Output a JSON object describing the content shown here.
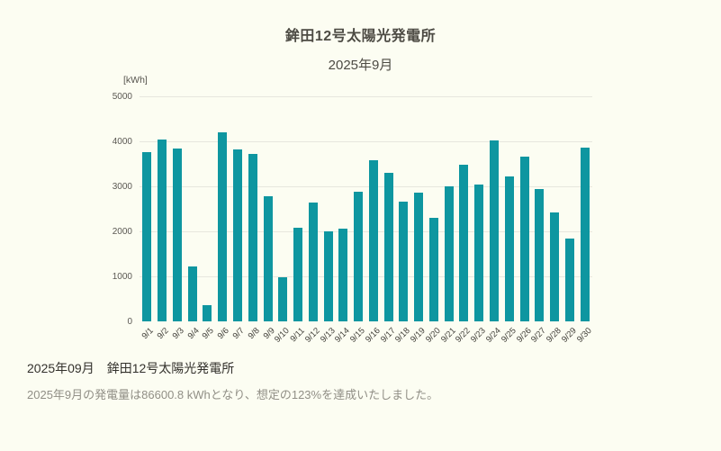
{
  "chart": {
    "title": "鉾田12号太陽光発電所",
    "subtitle": "2025年9月",
    "unit_label": "[kWh]"
  },
  "chart_data": {
    "type": "bar",
    "title": "鉾田12号太陽光発電所",
    "subtitle": "2025年9月",
    "xlabel": "",
    "ylabel": "[kWh]",
    "ylim": [
      0,
      5000
    ],
    "ytick_interval": 1000,
    "grid": true,
    "legend_position": "none",
    "bar_color": "#0e96a0",
    "categories": [
      "9/1",
      "9/2",
      "9/3",
      "9/4",
      "9/5",
      "9/6",
      "9/7",
      "9/8",
      "9/9",
      "9/10",
      "9/11",
      "9/12",
      "9/13",
      "9/14",
      "9/15",
      "9/16",
      "9/17",
      "9/18",
      "9/19",
      "9/20",
      "9/21",
      "9/22",
      "9/23",
      "9/24",
      "9/25",
      "9/26",
      "9/27",
      "9/28",
      "9/29",
      "9/30"
    ],
    "values": [
      3760,
      4050,
      3840,
      1220,
      360,
      4200,
      3830,
      3730,
      2780,
      980,
      2080,
      2650,
      2010,
      2060,
      2890,
      3590,
      3300,
      2660,
      2870,
      2310,
      3000,
      3480,
      3050,
      4030,
      3230,
      3670,
      2950,
      2430,
      1850,
      3870
    ]
  },
  "footer": {
    "heading": "2025年09月　鉾田12号太陽光発電所",
    "body": "2025年9月の発電量は86600.8 kWhとなり、想定の123%を達成いたしました。"
  }
}
